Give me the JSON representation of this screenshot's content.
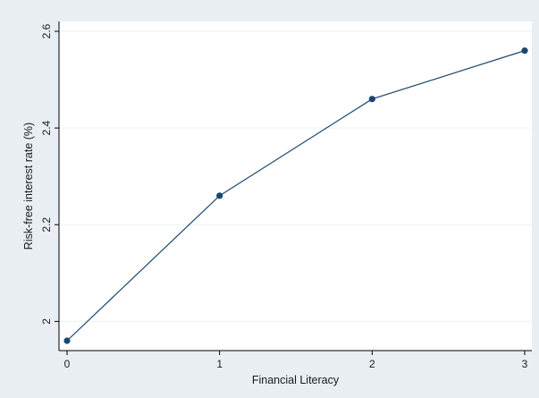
{
  "chart_data": {
    "type": "line",
    "xlabel": "Financial Literacy",
    "ylabel": "Risk-free interest rate (%)",
    "x": [
      0,
      1,
      2,
      3
    ],
    "series": [
      {
        "values": [
          1.96,
          2.26,
          2.46,
          2.56
        ]
      }
    ],
    "xticks": [
      "0",
      "1",
      "2",
      "3"
    ],
    "yticks": [
      "2",
      "2.2",
      "2.4",
      "2.6"
    ],
    "xlim": [
      0,
      3
    ],
    "ylim": [
      1.96,
      2.6
    ],
    "grid": true,
    "colors": {
      "background": "#e9eef3",
      "plot_area": "#ffffff",
      "line": "#1a476f",
      "marker": "#1a476f",
      "grid": "#eaf2f3",
      "axis": "#000000"
    }
  }
}
